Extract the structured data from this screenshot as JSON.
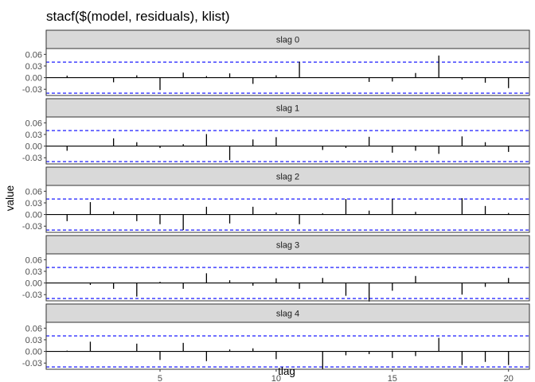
{
  "chart_data": {
    "type": "bar",
    "title": "stacf($(model, residuals), klist)",
    "xlabel": "tlag",
    "ylabel": "value",
    "xlim": [
      0.1,
      20.9
    ],
    "ylim": [
      -0.046,
      0.075
    ],
    "x_ticks": [
      5,
      10,
      15,
      20
    ],
    "y_ticks": [
      -0.03,
      0.0,
      0.03,
      0.06
    ],
    "y_tick_labels": [
      "-0.03",
      "0.00",
      "0.03",
      "0.06"
    ],
    "confidence_bound": 0.04,
    "colors": {
      "bars": "#000000",
      "bounds": "#0000ff",
      "strip": "#d9d9d9",
      "panel_border": "#333333"
    },
    "x": [
      1,
      2,
      3,
      4,
      5,
      6,
      7,
      8,
      9,
      10,
      11,
      12,
      13,
      14,
      15,
      16,
      17,
      18,
      19,
      20
    ],
    "panels": [
      {
        "label": "slag 0",
        "values": [
          0.005,
          0.0,
          -0.012,
          0.006,
          -0.032,
          0.013,
          0.004,
          0.011,
          -0.016,
          0.006,
          0.041,
          0.0,
          0.0,
          -0.011,
          -0.01,
          0.012,
          0.057,
          -0.005,
          -0.013,
          -0.027
        ]
      },
      {
        "label": "slag 1",
        "values": [
          -0.012,
          0.0,
          0.02,
          0.01,
          -0.005,
          0.005,
          0.031,
          -0.036,
          0.017,
          0.023,
          0.0,
          -0.01,
          -0.005,
          0.024,
          -0.017,
          -0.012,
          -0.02,
          0.025,
          0.01,
          -0.015
        ]
      },
      {
        "label": "slag 2",
        "values": [
          -0.017,
          0.032,
          0.008,
          -0.017,
          -0.025,
          -0.04,
          0.02,
          -0.023,
          0.02,
          0.005,
          -0.025,
          0.003,
          0.04,
          0.01,
          0.04,
          0.007,
          0.0,
          0.042,
          0.022,
          0.004
        ]
      },
      {
        "label": "slag 3",
        "values": [
          0.0,
          -0.005,
          -0.015,
          -0.035,
          0.003,
          -0.015,
          0.025,
          0.007,
          -0.007,
          0.012,
          -0.015,
          0.013,
          -0.033,
          -0.048,
          -0.02,
          0.018,
          0.0,
          -0.03,
          -0.01,
          0.013
        ]
      },
      {
        "label": "slag 4",
        "values": [
          0.002,
          0.025,
          0.0,
          0.02,
          -0.022,
          0.022,
          -0.025,
          0.005,
          0.008,
          -0.02,
          0.0,
          -0.047,
          -0.01,
          -0.007,
          -0.017,
          -0.012,
          0.035,
          -0.035,
          -0.027,
          -0.035
        ]
      }
    ]
  }
}
